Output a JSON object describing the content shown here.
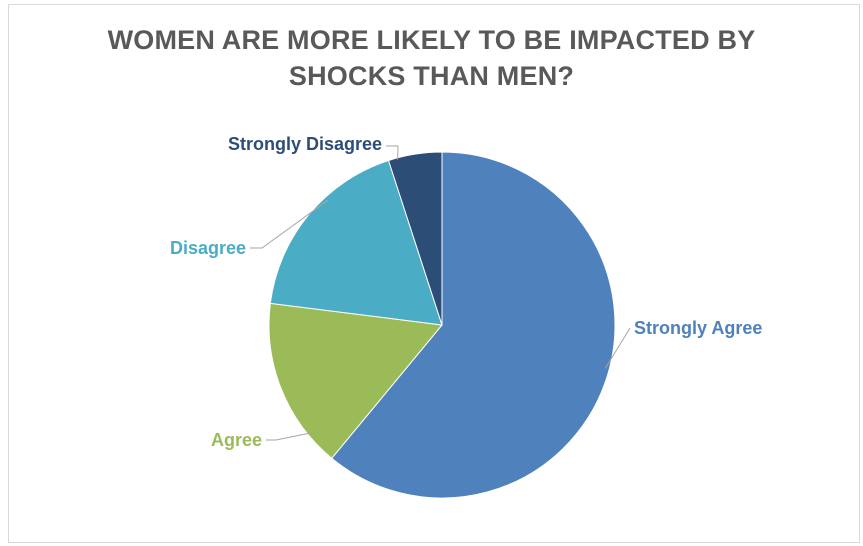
{
  "chart_data": {
    "type": "pie",
    "title": "WOMEN ARE MORE LIKELY TO BE IMPACTED BY SHOCKS THAN MEN?",
    "title_lines": [
      "WOMEN ARE MORE LIKELY TO BE IMPACTED BY",
      "SHOCKS THAN MEN?"
    ],
    "categories": [
      "Strongly Agree",
      "Agree",
      "Disagree",
      "Strongly Disagree"
    ],
    "values": [
      61,
      16,
      18,
      5
    ],
    "colors": [
      "#4f81bd",
      "#9bbb59",
      "#4bacc6",
      "#2c4d75"
    ],
    "label_colors": [
      "#4f81bd",
      "#9bbb59",
      "#4bacc6",
      "#2c4d75"
    ],
    "legend": "none",
    "data_labels": "category-name-outside-with-leader-lines"
  }
}
